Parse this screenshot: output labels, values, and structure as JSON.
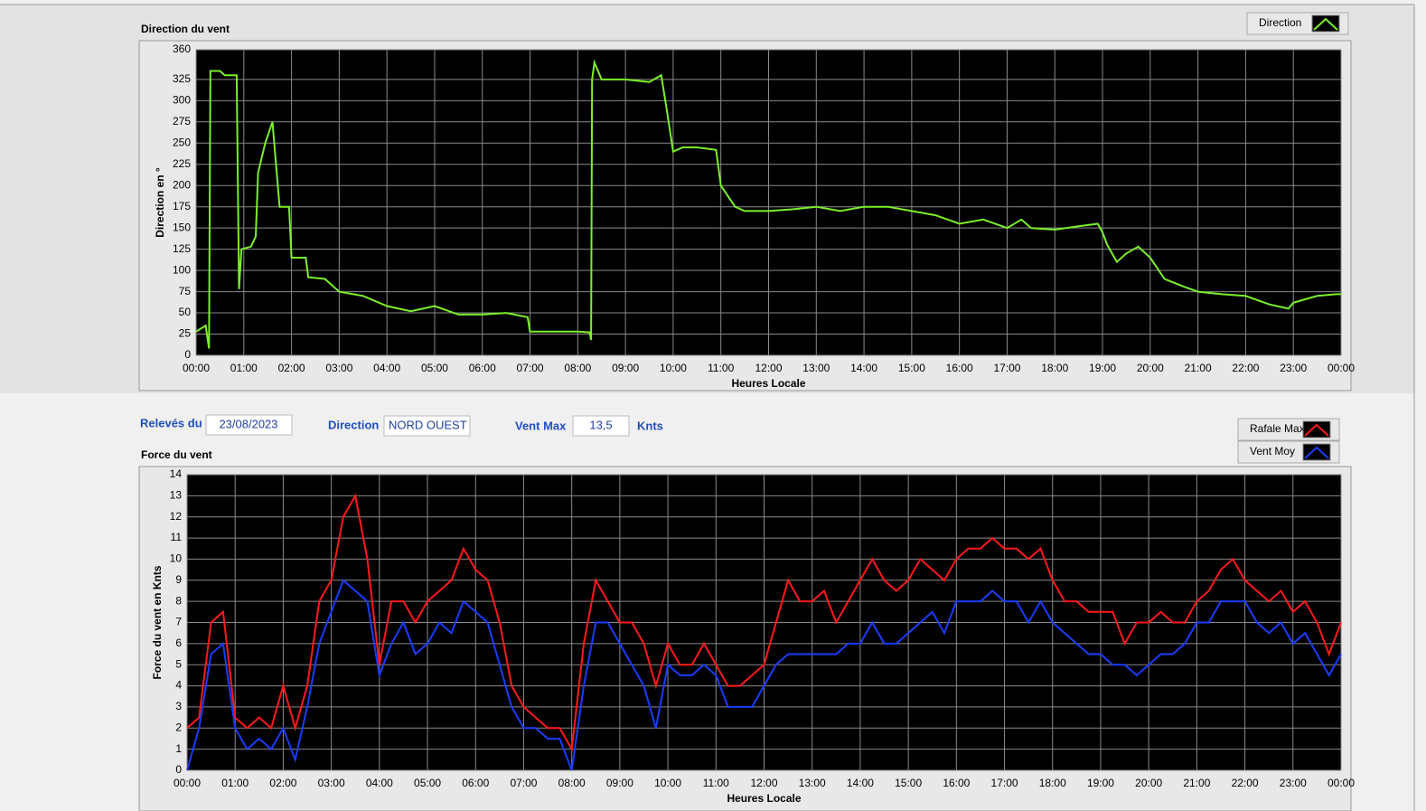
{
  "chart_data": [
    {
      "type": "line",
      "title": "Direction du vent",
      "ylabel": "Direction en °",
      "xlabel": "Heures Locale",
      "grid": true,
      "xlim": [
        0,
        24
      ],
      "ylim": [
        0,
        360
      ],
      "xticks": [
        {
          "value": 0,
          "label": "00:00"
        },
        {
          "value": 1,
          "label": "01:00"
        },
        {
          "value": 2,
          "label": "02:00"
        },
        {
          "value": 3,
          "label": "03:00"
        },
        {
          "value": 4,
          "label": "04:00"
        },
        {
          "value": 5,
          "label": "05:00"
        },
        {
          "value": 6,
          "label": "06:00"
        },
        {
          "value": 7,
          "label": "07:00"
        },
        {
          "value": 8,
          "label": "08:00"
        },
        {
          "value": 9,
          "label": "09:00"
        },
        {
          "value": 10,
          "label": "10:00"
        },
        {
          "value": 11,
          "label": "11:00"
        },
        {
          "value": 12,
          "label": "12:00"
        },
        {
          "value": 13,
          "label": "13:00"
        },
        {
          "value": 14,
          "label": "14:00"
        },
        {
          "value": 15,
          "label": "15:00"
        },
        {
          "value": 16,
          "label": "16:00"
        },
        {
          "value": 17,
          "label": "17:00"
        },
        {
          "value": 18,
          "label": "18:00"
        },
        {
          "value": 19,
          "label": "19:00"
        },
        {
          "value": 20,
          "label": "20:00"
        },
        {
          "value": 21,
          "label": "21:00"
        },
        {
          "value": 22,
          "label": "22:00"
        },
        {
          "value": 23,
          "label": "23:00"
        },
        {
          "value": 24,
          "label": "00:00"
        }
      ],
      "yticks": [
        0,
        25,
        50,
        75,
        100,
        125,
        150,
        175,
        200,
        225,
        250,
        275,
        300,
        325,
        360
      ],
      "x": [
        0,
        0.2,
        0.27,
        0.3,
        0.5,
        0.6,
        0.85,
        0.9,
        0.95,
        1.15,
        1.25,
        1.3,
        1.45,
        1.6,
        1.75,
        1.95,
        2.0,
        2.3,
        2.35,
        2.7,
        3.0,
        3.5,
        4.0,
        4.5,
        5.0,
        5.5,
        6.0,
        6.5,
        6.95,
        7.0,
        8.0,
        8.25,
        8.28,
        8.3,
        8.35,
        8.5,
        9.0,
        9.5,
        9.75,
        9.85,
        10.0,
        10.2,
        10.5,
        10.9,
        11.0,
        11.3,
        11.5,
        12.0,
        12.5,
        13.0,
        13.5,
        14.0,
        14.5,
        15.0,
        15.5,
        16.0,
        16.5,
        17.0,
        17.3,
        17.5,
        18.0,
        18.5,
        18.9,
        19.0,
        19.1,
        19.3,
        19.5,
        19.75,
        20.0,
        20.3,
        20.75,
        21.0,
        21.5,
        22.0,
        22.5,
        22.9,
        23.0,
        23.5,
        23.9,
        24.0
      ],
      "series": [
        {
          "name": "Direction",
          "color": "#7cf02a",
          "values": [
            28,
            35,
            8,
            335,
            335,
            330,
            330,
            78,
            125,
            128,
            140,
            215,
            250,
            275,
            175,
            175,
            115,
            115,
            92,
            90,
            75,
            70,
            58,
            52,
            58,
            48,
            48,
            50,
            45,
            28,
            28,
            27,
            18,
            325,
            345,
            325,
            325,
            322,
            330,
            295,
            240,
            245,
            245,
            242,
            200,
            175,
            170,
            170,
            172,
            175,
            170,
            175,
            175,
            170,
            165,
            155,
            160,
            150,
            160,
            150,
            148,
            152,
            155,
            145,
            130,
            110,
            120,
            128,
            115,
            90,
            80,
            75,
            72,
            70,
            60,
            55,
            62,
            70,
            72,
            72
          ]
        }
      ]
    },
    {
      "type": "line",
      "title": "Force du vent",
      "ylabel": "Force du vent en Knts",
      "xlabel": "Heures Locale",
      "grid": true,
      "xlim": [
        0,
        24
      ],
      "ylim": [
        0,
        14
      ],
      "xticks": [
        {
          "value": 0,
          "label": "00:00"
        },
        {
          "value": 1,
          "label": "01:00"
        },
        {
          "value": 2,
          "label": "02:00"
        },
        {
          "value": 3,
          "label": "03:00"
        },
        {
          "value": 4,
          "label": "04:00"
        },
        {
          "value": 5,
          "label": "05:00"
        },
        {
          "value": 6,
          "label": "06:00"
        },
        {
          "value": 7,
          "label": "07:00"
        },
        {
          "value": 8,
          "label": "08:00"
        },
        {
          "value": 9,
          "label": "09:00"
        },
        {
          "value": 10,
          "label": "10:00"
        },
        {
          "value": 11,
          "label": "11:00"
        },
        {
          "value": 12,
          "label": "12:00"
        },
        {
          "value": 13,
          "label": "13:00"
        },
        {
          "value": 14,
          "label": "14:00"
        },
        {
          "value": 15,
          "label": "15:00"
        },
        {
          "value": 16,
          "label": "16:00"
        },
        {
          "value": 17,
          "label": "17:00"
        },
        {
          "value": 18,
          "label": "18:00"
        },
        {
          "value": 19,
          "label": "19:00"
        },
        {
          "value": 20,
          "label": "20:00"
        },
        {
          "value": 21,
          "label": "21:00"
        },
        {
          "value": 22,
          "label": "22:00"
        },
        {
          "value": 23,
          "label": "23:00"
        },
        {
          "value": 24,
          "label": "00:00"
        }
      ],
      "yticks": [
        0,
        1,
        2,
        3,
        4,
        5,
        6,
        7,
        8,
        9,
        10,
        11,
        12,
        13,
        14
      ],
      "x": [
        0,
        0.25,
        0.5,
        0.75,
        1,
        1.25,
        1.5,
        1.75,
        2,
        2.25,
        2.5,
        2.75,
        3,
        3.25,
        3.5,
        3.75,
        4,
        4.25,
        4.5,
        4.75,
        5,
        5.25,
        5.5,
        5.75,
        6,
        6.25,
        6.5,
        6.75,
        7,
        7.25,
        7.5,
        7.75,
        8,
        8.25,
        8.5,
        8.75,
        9,
        9.25,
        9.5,
        9.75,
        10,
        10.25,
        10.5,
        10.75,
        11,
        11.25,
        11.5,
        11.75,
        12,
        12.25,
        12.5,
        12.75,
        13,
        13.25,
        13.5,
        13.75,
        14,
        14.25,
        14.5,
        14.75,
        15,
        15.25,
        15.5,
        15.75,
        16,
        16.25,
        16.5,
        16.75,
        17,
        17.25,
        17.5,
        17.75,
        18,
        18.25,
        18.5,
        18.75,
        19,
        19.25,
        19.5,
        19.75,
        20,
        20.25,
        20.5,
        20.75,
        21,
        21.25,
        21.5,
        21.75,
        22,
        22.25,
        22.5,
        22.75,
        23,
        23.25,
        23.5,
        23.75,
        24
      ],
      "series": [
        {
          "name": "Rafale Max",
          "color": "#ff1a1a",
          "values": [
            2,
            2.5,
            7,
            7.5,
            2.5,
            2,
            2.5,
            2,
            4,
            2,
            4,
            8,
            9,
            12,
            13,
            10,
            5,
            8,
            8,
            7,
            8,
            8.5,
            9,
            10.5,
            9.5,
            9,
            7,
            4,
            3,
            2.5,
            2,
            2,
            1,
            6,
            9,
            8,
            7,
            7,
            6,
            4,
            6,
            5,
            5,
            6,
            5,
            4,
            4,
            4.5,
            5,
            7,
            9,
            8,
            8,
            8.5,
            7,
            8,
            9,
            10,
            9,
            8.5,
            9,
            10,
            9.5,
            9,
            10,
            10.5,
            10.5,
            11,
            10.5,
            10.5,
            10,
            10.5,
            9,
            8,
            8,
            7.5,
            7.5,
            7.5,
            6,
            7,
            7,
            7.5,
            7,
            7,
            8,
            8.5,
            9.5,
            10,
            9,
            8.5,
            8,
            8.5,
            7.5,
            8,
            7,
            5.5,
            7
          ]
        },
        {
          "name": "Vent Moy",
          "color": "#1a3cff",
          "values": [
            0,
            2,
            5.5,
            6,
            2,
            1,
            1.5,
            1,
            2,
            0.5,
            3,
            6,
            7.5,
            9,
            8.5,
            8,
            4.5,
            6,
            7,
            5.5,
            6,
            7,
            6.5,
            8,
            7.5,
            7,
            5,
            3,
            2,
            2,
            1.5,
            1.5,
            0,
            4,
            7,
            7,
            6,
            5,
            4,
            2,
            5,
            4.5,
            4.5,
            5,
            4.5,
            3,
            3,
            3,
            4,
            5,
            5.5,
            5.5,
            5.5,
            5.5,
            5.5,
            6,
            6,
            7,
            6,
            6,
            6.5,
            7,
            7.5,
            6.5,
            8,
            8,
            8,
            8.5,
            8,
            8,
            7,
            8,
            7,
            6.5,
            6,
            5.5,
            5.5,
            5,
            5,
            4.5,
            5,
            5.5,
            5.5,
            6,
            7,
            7,
            8,
            8,
            8,
            7,
            6.5,
            7,
            6,
            6.5,
            5.5,
            4.5,
            5.5
          ]
        }
      ]
    }
  ],
  "fields": {
    "date_label": "Relevés du",
    "date": "23/08/2023",
    "direction_label": "Direction",
    "direction": "NORD OUEST",
    "max_label": "Vent Max",
    "max": "13,5",
    "unit": "Knts"
  }
}
